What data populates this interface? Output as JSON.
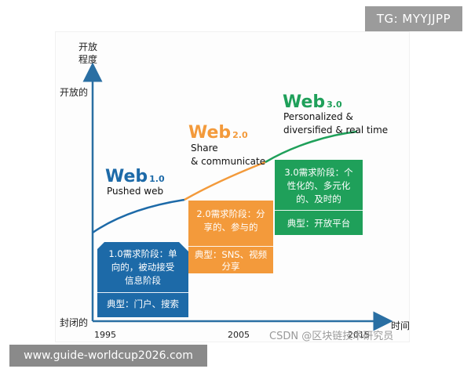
{
  "colors": {
    "axis": "#2a6fa3",
    "web1": "#1d6aa8",
    "web2": "#f39a3b",
    "web3": "#1fa05a",
    "watermark_bg": "#9b9b9b"
  },
  "watermarks": {
    "tg": "TG: MYYJJPP",
    "url": "www.guide-worldcup2026.com",
    "csdn": "CSDN @区块链技术研究员"
  },
  "axes": {
    "y_title_line1": "开放",
    "y_title_line2": "程度",
    "y_top": "开放的",
    "y_bottom": "封闭的",
    "x_title": "时间",
    "x_ticks": [
      "1995",
      "2005",
      "2015"
    ]
  },
  "stages": [
    {
      "title": "Web",
      "version": "1.0",
      "subtitle_lines": [
        "Pushed web"
      ],
      "box_lines": [
        "1.0需求阶段：单",
        "向的，被动接受",
        "信息阶段"
      ],
      "box_footer_lines": [
        "典型：门户、搜索"
      ]
    },
    {
      "title": "Web",
      "version": "2.0",
      "subtitle_lines": [
        "Share",
        "& communicate"
      ],
      "box_lines": [
        "2.0需求阶段：分",
        "享的、参与的"
      ],
      "box_footer_lines": [
        "典型：SNS、视频",
        "分享"
      ]
    },
    {
      "title": "Web",
      "version": "3.0",
      "subtitle_lines": [
        "Personalized &",
        "diversified & real time"
      ],
      "box_lines": [
        "3.0需求阶段：个",
        "性化的、多元化",
        "的、及时的"
      ],
      "box_footer_lines": [
        "典型：开放平台"
      ]
    }
  ]
}
